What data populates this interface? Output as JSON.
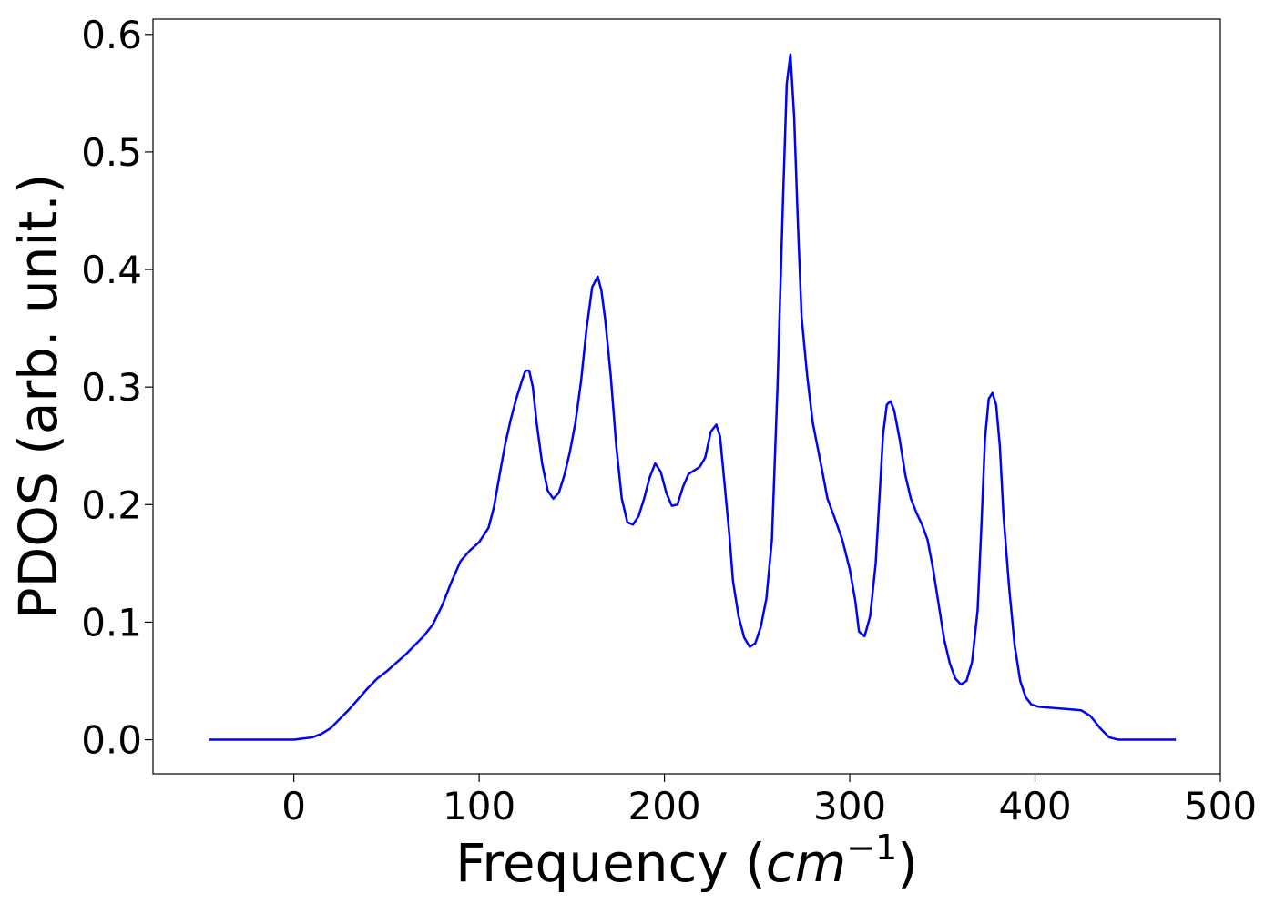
{
  "chart_data": {
    "type": "line",
    "title": "",
    "xlabel_main": "Frequency (",
    "xlabel_italic": "cm",
    "xlabel_sup": "−1",
    "xlabel_close": ")",
    "ylabel": "PDOS (arb. unit.)",
    "xlim": [
      -76,
      500
    ],
    "ylim": [
      -0.029,
      0.613
    ],
    "xticks": [
      0,
      100,
      200,
      300,
      400,
      500
    ],
    "xtick_labels": [
      "0",
      "100",
      "200",
      "300",
      "400",
      "500"
    ],
    "yticks": [
      0.0,
      0.1,
      0.2,
      0.3,
      0.4,
      0.5,
      0.6
    ],
    "ytick_labels": [
      "0.0",
      "0.1",
      "0.2",
      "0.3",
      "0.4",
      "0.5",
      "0.6"
    ],
    "grid": false,
    "legend": "none",
    "line_color": "#0000ff",
    "series": [
      {
        "x": [
          -46,
          -30,
          -15,
          -5,
          0,
          5,
          10,
          15,
          20,
          25,
          30,
          35,
          40,
          45,
          50,
          55,
          60,
          65,
          70,
          75,
          80,
          85,
          90,
          95,
          100,
          105,
          108,
          111,
          114,
          117,
          120,
          123,
          125,
          127,
          129,
          131,
          134,
          137,
          140,
          143,
          146,
          149,
          152,
          155,
          158,
          161,
          164,
          166,
          168,
          171,
          174,
          177,
          180,
          183,
          186,
          189,
          192,
          195,
          198,
          201,
          204,
          207,
          210,
          213,
          216,
          219,
          222,
          225,
          228,
          230,
          232,
          235,
          237,
          240,
          243,
          246,
          249,
          252,
          255,
          258,
          261,
          264,
          266,
          268,
          270,
          272,
          274,
          277,
          280,
          284,
          288,
          292,
          296,
          300,
          303,
          305,
          308,
          311,
          314,
          316,
          318,
          320,
          322,
          324,
          327,
          330,
          333,
          336,
          339,
          342,
          345,
          348,
          351,
          354,
          357,
          360,
          363,
          366,
          369,
          371,
          373,
          375,
          377,
          379,
          381,
          383,
          386,
          389,
          392,
          395,
          398,
          402,
          410,
          418,
          425,
          430,
          435,
          440,
          445,
          455,
          465,
          476
        ],
        "y": [
          0.0,
          0.0,
          0.0,
          0.0,
          0.0,
          0.001,
          0.002,
          0.005,
          0.01,
          0.018,
          0.026,
          0.035,
          0.044,
          0.052,
          0.058,
          0.065,
          0.072,
          0.08,
          0.088,
          0.098,
          0.114,
          0.134,
          0.152,
          0.161,
          0.168,
          0.18,
          0.198,
          0.225,
          0.251,
          0.272,
          0.29,
          0.305,
          0.314,
          0.314,
          0.3,
          0.27,
          0.235,
          0.212,
          0.205,
          0.21,
          0.225,
          0.245,
          0.27,
          0.305,
          0.35,
          0.385,
          0.394,
          0.382,
          0.358,
          0.31,
          0.25,
          0.205,
          0.185,
          0.183,
          0.19,
          0.205,
          0.223,
          0.235,
          0.228,
          0.21,
          0.199,
          0.2,
          0.215,
          0.226,
          0.229,
          0.232,
          0.24,
          0.262,
          0.268,
          0.258,
          0.225,
          0.175,
          0.135,
          0.105,
          0.087,
          0.079,
          0.082,
          0.096,
          0.12,
          0.17,
          0.3,
          0.46,
          0.558,
          0.583,
          0.53,
          0.44,
          0.36,
          0.31,
          0.27,
          0.238,
          0.205,
          0.188,
          0.17,
          0.145,
          0.118,
          0.092,
          0.088,
          0.105,
          0.15,
          0.205,
          0.26,
          0.285,
          0.288,
          0.28,
          0.255,
          0.225,
          0.205,
          0.193,
          0.183,
          0.17,
          0.145,
          0.115,
          0.085,
          0.065,
          0.052,
          0.047,
          0.05,
          0.066,
          0.11,
          0.18,
          0.256,
          0.29,
          0.295,
          0.285,
          0.25,
          0.19,
          0.13,
          0.08,
          0.05,
          0.036,
          0.03,
          0.028,
          0.027,
          0.026,
          0.025,
          0.02,
          0.01,
          0.002,
          0.0,
          0.0,
          0.0,
          0.0
        ]
      }
    ]
  }
}
